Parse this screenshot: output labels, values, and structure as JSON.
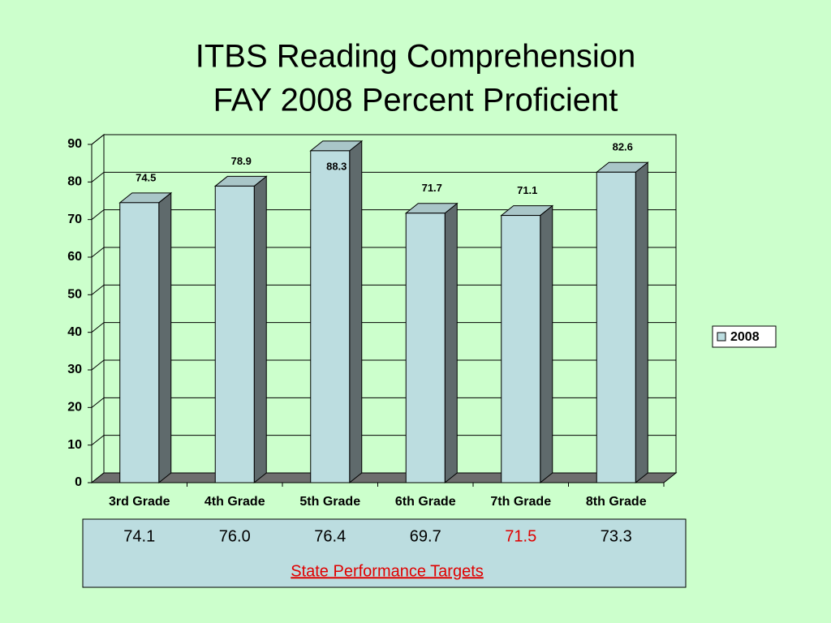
{
  "chart_data": {
    "type": "bar3d",
    "title": "ITBS Reading Comprehension",
    "subtitle": "FAY 2008 Percent Proficient",
    "categories": [
      "3rd Grade",
      "4th Grade",
      "5th Grade",
      "6th Grade",
      "7th Grade",
      "8th Grade"
    ],
    "series": [
      {
        "name": "2008",
        "color": "#bcdde0",
        "values": [
          74.5,
          78.9,
          88.3,
          71.7,
          71.1,
          82.6
        ]
      }
    ],
    "ylim": [
      0,
      90
    ],
    "yticks": [
      0,
      10,
      20,
      30,
      40,
      50,
      60,
      70,
      80,
      90
    ],
    "grid": true,
    "legend": "right"
  },
  "targets": {
    "title": "State Performance Targets",
    "values": [
      "74.1",
      "76.0",
      "76.4",
      "69.7",
      "71.5",
      "73.3"
    ],
    "colors": [
      "#000000",
      "#000000",
      "#000000",
      "#000000",
      "#e00000",
      "#000000"
    ]
  }
}
